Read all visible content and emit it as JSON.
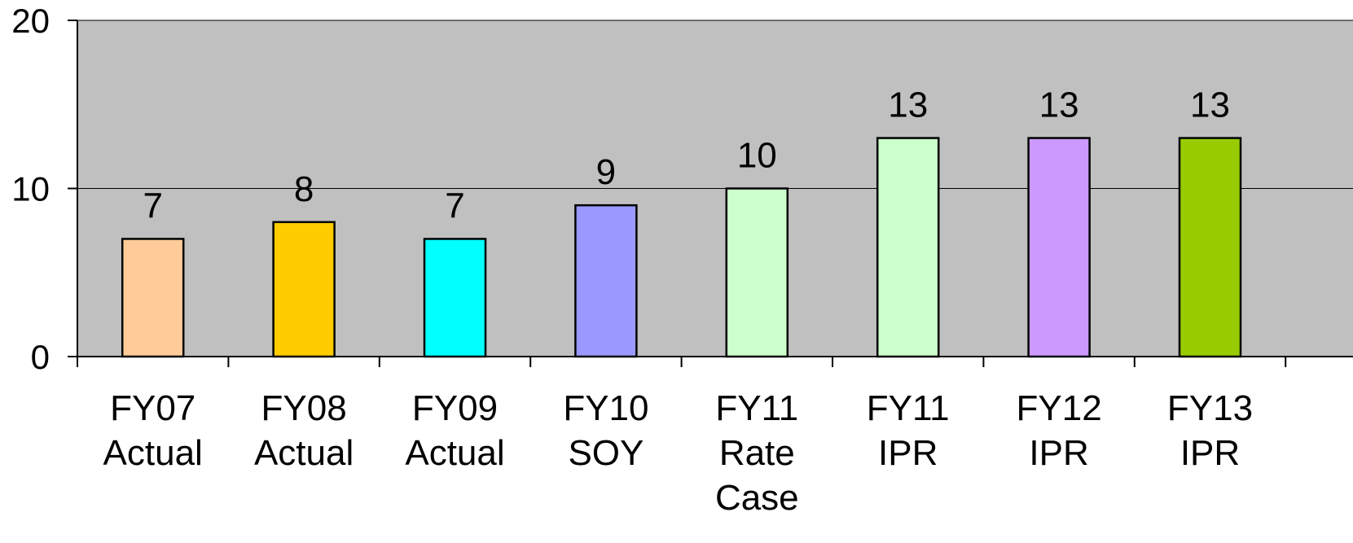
{
  "chart_data": {
    "type": "bar",
    "title": "",
    "xlabel": "",
    "ylabel": "",
    "ylim": [
      0,
      20
    ],
    "yticks": [
      "0",
      "10",
      "20"
    ],
    "grid": true,
    "plot_background": "#C0C0C0",
    "categories": [
      [
        "FY07",
        "Actual"
      ],
      [
        "FY08",
        "Actual"
      ],
      [
        "FY09",
        "Actual"
      ],
      [
        "FY10",
        "SOY"
      ],
      [
        "FY11",
        "Rate",
        "Case"
      ],
      [
        "FY11",
        "IPR"
      ],
      [
        "FY12",
        "IPR"
      ],
      [
        "FY13",
        "IPR"
      ]
    ],
    "values": [
      7,
      8,
      7,
      9,
      10,
      13,
      13,
      13
    ],
    "data_labels": [
      "7",
      "8",
      "7",
      "9",
      "10",
      "13",
      "13",
      "13"
    ],
    "colors": [
      "#FFCC99",
      "#FFCC00",
      "#00FFFF",
      "#9999FF",
      "#CCFFCC",
      "#CCFFCC",
      "#CC99FF",
      "#99CC00"
    ]
  }
}
